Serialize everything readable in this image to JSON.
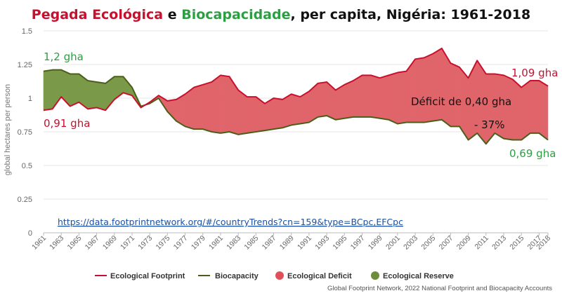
{
  "title": {
    "part1": "Pegada Ecológica",
    "part2": " e ",
    "part3": "Biocapacidade",
    "part4": ", per capita, Nigéria: 1961-2018"
  },
  "colors": {
    "footprint": "#c8102e",
    "biocapacity": "#4a5e1a",
    "deficit": "#e0656a",
    "reserve": "#7a9a4a",
    "title_red": "#c8102e",
    "title_green": "#2e9e44",
    "annotation_green": "#2e9e44"
  },
  "annotations": {
    "start_bio": "1,2 gha",
    "start_fp": "0,91 gha",
    "end_fp": "1,09 gha",
    "end_bio": "0,69 gha",
    "deficit_label": "Déficit de 0,40 gha",
    "deficit_pct": "- 37%"
  },
  "url_text": "https://data.footprintnetwork.org/#/countryTrends?cn=159&type=BCpc,EFCpc",
  "source": "Global Footprint Network, 2022 National Footprint and Biocapacity Accounts",
  "chart_data": {
    "type": "area",
    "title": "Pegada Ecológica e Biocapacidade, per capita, Nigéria: 1961-2018",
    "ylabel": "global hectares per person",
    "xlabel": "",
    "ylim": [
      0,
      1.5
    ],
    "yticks": [
      "0",
      "0.25",
      "0.5",
      "0.75",
      "1",
      "1.25",
      "1.5"
    ],
    "xticks": [
      "1961",
      "1963",
      "1965",
      "1967",
      "1969",
      "1971",
      "1973",
      "1975",
      "1977",
      "1979",
      "1981",
      "1983",
      "1985",
      "1987",
      "1989",
      "1991",
      "1993",
      "1995",
      "1997",
      "1999",
      "2001",
      "2003",
      "2005",
      "2007",
      "2009",
      "2011",
      "2013",
      "2015",
      "2017",
      "2018"
    ],
    "grid": "horizontal",
    "legend_position": "bottom",
    "x": [
      1961,
      1962,
      1963,
      1964,
      1965,
      1966,
      1967,
      1968,
      1969,
      1970,
      1971,
      1972,
      1973,
      1974,
      1975,
      1976,
      1977,
      1978,
      1979,
      1980,
      1981,
      1982,
      1983,
      1984,
      1985,
      1986,
      1987,
      1988,
      1989,
      1990,
      1991,
      1992,
      1993,
      1994,
      1995,
      1996,
      1997,
      1998,
      1999,
      2000,
      2001,
      2002,
      2003,
      2004,
      2005,
      2006,
      2007,
      2008,
      2009,
      2010,
      2011,
      2012,
      2013,
      2014,
      2015,
      2016,
      2017,
      2018
    ],
    "series": [
      {
        "name": "Ecological Footprint",
        "values": [
          0.91,
          0.92,
          1.01,
          0.94,
          0.97,
          0.92,
          0.93,
          0.91,
          0.99,
          1.04,
          1.02,
          0.93,
          0.97,
          1.02,
          0.98,
          0.99,
          1.03,
          1.08,
          1.1,
          1.12,
          1.17,
          1.16,
          1.06,
          1.01,
          1.01,
          0.96,
          1.0,
          0.99,
          1.03,
          1.01,
          1.05,
          1.11,
          1.12,
          1.06,
          1.1,
          1.13,
          1.17,
          1.17,
          1.15,
          1.17,
          1.19,
          1.2,
          1.29,
          1.3,
          1.33,
          1.37,
          1.26,
          1.23,
          1.15,
          1.28,
          1.18,
          1.18,
          1.17,
          1.14,
          1.08,
          1.13,
          1.13,
          1.09
        ]
      },
      {
        "name": "Biocapacity",
        "values": [
          1.2,
          1.21,
          1.21,
          1.18,
          1.18,
          1.13,
          1.12,
          1.11,
          1.16,
          1.16,
          1.08,
          0.94,
          0.96,
          1.0,
          0.9,
          0.83,
          0.79,
          0.77,
          0.77,
          0.75,
          0.74,
          0.75,
          0.73,
          0.74,
          0.75,
          0.76,
          0.77,
          0.78,
          0.8,
          0.81,
          0.82,
          0.86,
          0.87,
          0.84,
          0.85,
          0.86,
          0.86,
          0.86,
          0.85,
          0.84,
          0.81,
          0.82,
          0.82,
          0.82,
          0.83,
          0.84,
          0.79,
          0.79,
          0.69,
          0.74,
          0.66,
          0.74,
          0.7,
          0.69,
          0.69,
          0.74,
          0.74,
          0.69
        ]
      }
    ],
    "areas": [
      {
        "name": "Ecological Deficit"
      },
      {
        "name": "Ecological Reserve"
      }
    ]
  }
}
